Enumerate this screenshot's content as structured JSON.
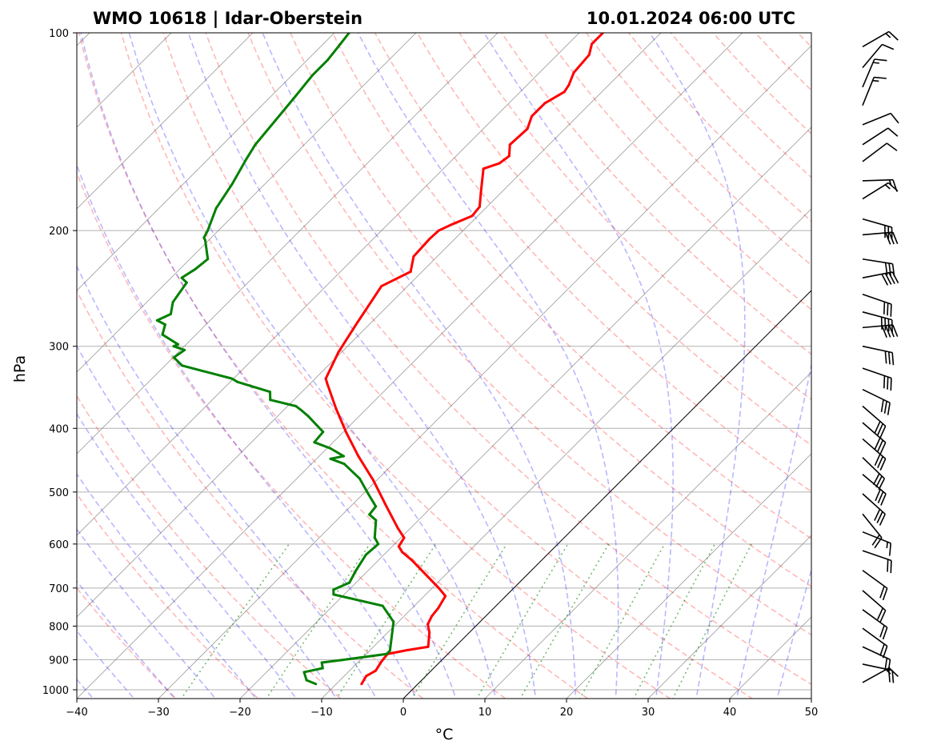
{
  "chart_data": {
    "type": "line",
    "subtype": "skew-t log-p",
    "title_left": "WMO 10618 | Idar-Oberstein",
    "title_right": "10.01.2024 06:00 UTC",
    "xlabel": "°C",
    "ylabel": "hPa",
    "xlim": [
      -40,
      50
    ],
    "ylim": [
      1033,
      100
    ],
    "xticks": [
      "−40",
      "−30",
      "−20",
      "−10",
      "0",
      "10",
      "20",
      "30",
      "40",
      "50"
    ],
    "xtick_values": [
      -40,
      -30,
      -20,
      -10,
      0,
      10,
      20,
      30,
      40,
      50
    ],
    "yticks": [
      "100",
      "200",
      "300",
      "400",
      "500",
      "600",
      "700",
      "800",
      "900",
      "1000"
    ],
    "ytick_values": [
      100,
      200,
      300,
      400,
      500,
      600,
      700,
      800,
      900,
      1000
    ],
    "grid": true,
    "colors": {
      "temperature": "#ff0000",
      "dewpoint": "#008000",
      "dry_adiabat": "#ff0000",
      "moist_adiabat": "#0000ff",
      "mixing_ratio": "#008000",
      "isotherm": "#808080",
      "zero_isotherm": "#000000"
    },
    "series": [
      {
        "name": "temperature",
        "points": [
          [
            980,
            -6.9
          ],
          [
            953,
            -7.3
          ],
          [
            935,
            -6.8
          ],
          [
            907,
            -7.2
          ],
          [
            882,
            -7.4
          ],
          [
            870,
            -5.4
          ],
          [
            860,
            -3.3
          ],
          [
            818,
            -4.9
          ],
          [
            795,
            -6.1
          ],
          [
            773,
            -6.6
          ],
          [
            751,
            -6.8
          ],
          [
            720,
            -7.4
          ],
          [
            700,
            -9.2
          ],
          [
            635,
            -15.9
          ],
          [
            617,
            -18.1
          ],
          [
            605,
            -19.2
          ],
          [
            587,
            -19.6
          ],
          [
            568,
            -21.5
          ],
          [
            522,
            -26.0
          ],
          [
            480,
            -30.4
          ],
          [
            441,
            -35.2
          ],
          [
            405,
            -39.7
          ],
          [
            373,
            -43.8
          ],
          [
            342,
            -47.9
          ],
          [
            336,
            -48.7
          ],
          [
            306,
            -50.4
          ],
          [
            276,
            -51.7
          ],
          [
            243,
            -53.2
          ],
          [
            231,
            -51.4
          ],
          [
            219,
            -52.9
          ],
          [
            206,
            -53.1
          ],
          [
            200,
            -53.0
          ],
          [
            196,
            -52.2
          ],
          [
            190,
            -50.7
          ],
          [
            184,
            -50.9
          ],
          [
            175,
            -52.5
          ],
          [
            161,
            -55.1
          ],
          [
            158,
            -53.8
          ],
          [
            154,
            -53.5
          ],
          [
            148,
            -54.8
          ],
          [
            140,
            -54.6
          ],
          [
            134,
            -55.6
          ],
          [
            128,
            -55.6
          ],
          [
            123,
            -54.6
          ],
          [
            120,
            -54.9
          ],
          [
            115,
            -55.8
          ],
          [
            108,
            -56.1
          ],
          [
            104,
            -57.1
          ],
          [
            100,
            -57.1
          ]
        ]
      },
      {
        "name": "dewpoint",
        "points": [
          [
            980,
            -12.5
          ],
          [
            967,
            -14.1
          ],
          [
            940,
            -15.4
          ],
          [
            927,
            -13.6
          ],
          [
            909,
            -14.4
          ],
          [
            901,
            -12.3
          ],
          [
            882,
            -7.5
          ],
          [
            872,
            -7.5
          ],
          [
            788,
            -10.6
          ],
          [
            745,
            -13.9
          ],
          [
            716,
            -21.3
          ],
          [
            704,
            -21.9
          ],
          [
            687,
            -20.8
          ],
          [
            658,
            -21.5
          ],
          [
            623,
            -22.2
          ],
          [
            600,
            -22.0
          ],
          [
            587,
            -23.2
          ],
          [
            552,
            -25.2
          ],
          [
            541,
            -26.7
          ],
          [
            526,
            -26.9
          ],
          [
            503,
            -29.4
          ],
          [
            477,
            -32.3
          ],
          [
            453,
            -36.0
          ],
          [
            445,
            -38.3
          ],
          [
            441,
            -37.0
          ],
          [
            429,
            -39.6
          ],
          [
            420,
            -42.3
          ],
          [
            405,
            -42.5
          ],
          [
            383,
            -46.3
          ],
          [
            376,
            -47.7
          ],
          [
            370,
            -49.0
          ],
          [
            362,
            -52.9
          ],
          [
            352,
            -53.9
          ],
          [
            340,
            -59.1
          ],
          [
            336,
            -60.2
          ],
          [
            321,
            -67.9
          ],
          [
            312,
            -69.9
          ],
          [
            304,
            -69.5
          ],
          [
            300,
            -71.3
          ],
          [
            298,
            -71.0
          ],
          [
            288,
            -74.1
          ],
          [
            278,
            -75.0
          ],
          [
            274,
            -76.5
          ],
          [
            268,
            -75.6
          ],
          [
            257,
            -76.8
          ],
          [
            240,
            -77.5
          ],
          [
            236,
            -78.7
          ],
          [
            229,
            -78.1
          ],
          [
            221,
            -77.8
          ],
          [
            207,
            -80.4
          ],
          [
            205,
            -80.9
          ],
          [
            200,
            -81.3
          ],
          [
            185,
            -83.0
          ],
          [
            170,
            -84.0
          ],
          [
            156,
            -85.3
          ],
          [
            148,
            -86.0
          ],
          [
            136,
            -86.5
          ],
          [
            125,
            -87.0
          ],
          [
            116,
            -87.5
          ],
          [
            110,
            -87.5
          ],
          [
            104,
            -87.9
          ],
          [
            100,
            -88.2
          ]
        ]
      }
    ],
    "wind_barbs": [
      {
        "p": 105,
        "dir": 60,
        "kt": 15
      },
      {
        "p": 113,
        "dir": 40,
        "kt": 10
      },
      {
        "p": 121,
        "dir": 23,
        "kt": 15
      },
      {
        "p": 129,
        "dir": 22,
        "kt": 15
      },
      {
        "p": 138,
        "dir": 68,
        "kt": 10
      },
      {
        "p": 148,
        "dir": 57,
        "kt": 10
      },
      {
        "p": 157,
        "dir": 53,
        "kt": 10
      },
      {
        "p": 168,
        "dir": 88,
        "kt": 15
      },
      {
        "p": 179,
        "dir": 58,
        "kt": 15
      },
      {
        "p": 192,
        "dir": 106,
        "kt": 30
      },
      {
        "p": 203,
        "dir": 85,
        "kt": 30
      },
      {
        "p": 221,
        "dir": 99,
        "kt": 30
      },
      {
        "p": 236,
        "dir": 79,
        "kt": 40
      },
      {
        "p": 250,
        "dir": 109,
        "kt": 30
      },
      {
        "p": 266,
        "dir": 105,
        "kt": 40
      },
      {
        "p": 281,
        "dir": 85,
        "kt": 40
      },
      {
        "p": 300,
        "dir": 102,
        "kt": 30
      },
      {
        "p": 324,
        "dir": 109,
        "kt": 30
      },
      {
        "p": 349,
        "dir": 116,
        "kt": 30
      },
      {
        "p": 370,
        "dir": 131,
        "kt": 30
      },
      {
        "p": 392,
        "dir": 131,
        "kt": 30
      },
      {
        "p": 415,
        "dir": 131,
        "kt": 30
      },
      {
        "p": 443,
        "dir": 134,
        "kt": 30
      },
      {
        "p": 470,
        "dir": 130,
        "kt": 30
      },
      {
        "p": 503,
        "dir": 132,
        "kt": 30
      },
      {
        "p": 540,
        "dir": 141,
        "kt": 20
      },
      {
        "p": 575,
        "dir": 112,
        "kt": 15
      },
      {
        "p": 614,
        "dir": 109,
        "kt": 20
      },
      {
        "p": 658,
        "dir": 126,
        "kt": 20
      },
      {
        "p": 706,
        "dir": 131,
        "kt": 20
      },
      {
        "p": 755,
        "dir": 126,
        "kt": 20
      },
      {
        "p": 806,
        "dir": 126,
        "kt": 20
      },
      {
        "p": 860,
        "dir": 115,
        "kt": 20
      },
      {
        "p": 914,
        "dir": 102,
        "kt": 20
      },
      {
        "p": 975,
        "dir": 61,
        "kt": 15
      }
    ],
    "background_lines": {
      "isotherms_step_c": 10,
      "dry_adiabats_theta_c_at_1000": {
        "from": -30,
        "to": 190,
        "step": 10
      },
      "moist_adiabats_t_c_at_1000": {
        "from": -45,
        "to": 45,
        "step": 5
      },
      "mixing_ratios_kg_per_kg": [
        0.0004,
        0.001,
        0.002,
        0.004,
        0.007,
        0.01,
        0.016,
        0.024,
        0.032
      ]
    }
  }
}
